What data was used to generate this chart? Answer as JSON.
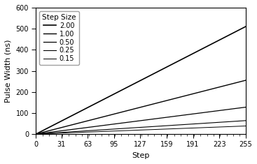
{
  "step_sizes": [
    2.0,
    1.0,
    0.5,
    0.25,
    0.15
  ],
  "step_size_labels": [
    "2.00",
    "1.00",
    "0.50",
    "0.25",
    "0.15"
  ],
  "scale_factor": 1.02,
  "x_max": 255,
  "y_min": 0,
  "y_max": 600,
  "x_ticks": [
    0,
    31,
    63,
    95,
    127,
    159,
    191,
    223,
    255
  ],
  "y_ticks": [
    0,
    100,
    200,
    300,
    400,
    500,
    600
  ],
  "xlabel": "Step",
  "ylabel": "Pulse Width (ns)",
  "legend_title": "Step Size",
  "legend_loc": "upper left",
  "line_color": "#000000",
  "background_color": "#ffffff",
  "line_widths": [
    1.2,
    1.0,
    0.9,
    0.8,
    0.7
  ],
  "minor_tick_interval": 8,
  "figure_width": 3.67,
  "figure_height": 2.35,
  "dpi": 100
}
